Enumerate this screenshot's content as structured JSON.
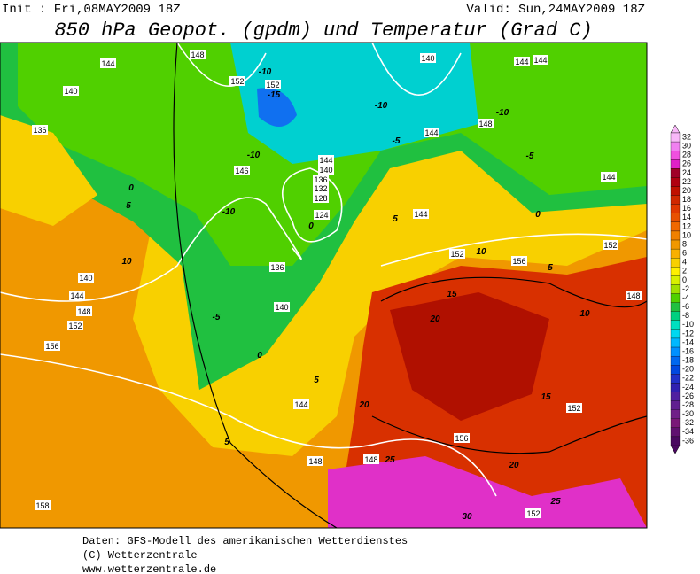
{
  "header": {
    "init": "Init : Fri,08MAY2009 18Z",
    "valid": "Valid: Sun,24MAY2009 18Z",
    "title": "850 hPa Geopot. (gpdm) und Temperatur (Grad C)"
  },
  "colorbar": {
    "labels": [
      32,
      30,
      28,
      26,
      24,
      22,
      20,
      18,
      16,
      14,
      12,
      10,
      8,
      6,
      4,
      2,
      0,
      -2,
      -4,
      -6,
      -8,
      -10,
      -12,
      -14,
      -16,
      -18,
      -20,
      -22,
      -24,
      -26,
      -28,
      -30,
      -32,
      -34,
      -36
    ],
    "colors": [
      "#f8b8f8",
      "#f080f0",
      "#f050e0",
      "#e020c8",
      "#a00028",
      "#b00010",
      "#c01000",
      "#d02800",
      "#e03800",
      "#e85000",
      "#f06800",
      "#f08000",
      "#f09800",
      "#f8b000",
      "#f8d000",
      "#fff000",
      "#d8f000",
      "#a0e000",
      "#50d000",
      "#20c040",
      "#00d080",
      "#00e0c0",
      "#00d8f0",
      "#00b8ff",
      "#0090ff",
      "#0068f0",
      "#0048e0",
      "#2030c8",
      "#3020b0",
      "#5020a0",
      "#602090",
      "#702088",
      "#7a1878",
      "#601070",
      "#4a0860"
    ]
  },
  "map": {
    "geopotential_labels": [
      144,
      148,
      140,
      136,
      152,
      152,
      146,
      144,
      140,
      136,
      132,
      128,
      124,
      136,
      140,
      140,
      144,
      148,
      152,
      156,
      158,
      144,
      148,
      148,
      140,
      144,
      144,
      144,
      148,
      144,
      152,
      156,
      152,
      148,
      152,
      156,
      152,
      144
    ],
    "temperature_labels": [
      -10,
      -15,
      -10,
      -10,
      -10,
      -10,
      -5,
      -5,
      0,
      0,
      0,
      -5,
      10,
      5,
      5,
      0,
      5,
      5,
      10,
      15,
      20,
      10,
      15,
      20,
      20,
      25,
      25,
      30,
      5
    ]
  },
  "footer": {
    "source": "Daten: GFS-Modell des amerikanischen Wetterdienstes",
    "copyright": "(C) Wetterzentrale",
    "url": "www.wetterzentrale.de"
  }
}
